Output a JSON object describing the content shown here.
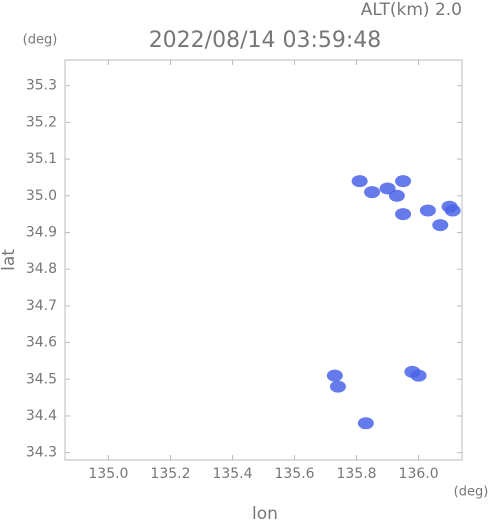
{
  "chart_data": {
    "type": "scatter",
    "title": "2022/08/14 03:59:48",
    "subtitle": "ALT(km) 2.0",
    "y_unit": "(deg)",
    "x_unit": "(deg)",
    "x_label": "lon",
    "y_label": "lat",
    "x": [
      135.81,
      135.85,
      135.9,
      135.95,
      135.93,
      135.95,
      136.03,
      136.07,
      136.1,
      136.11,
      135.73,
      135.74,
      135.98,
      136.0,
      135.83
    ],
    "y": [
      35.04,
      35.01,
      35.02,
      35.04,
      35.0,
      34.95,
      34.96,
      34.92,
      34.97,
      34.96,
      34.51,
      34.48,
      34.52,
      34.51,
      34.38
    ],
    "color": "#4a63e8",
    "xlim": [
      134.86,
      136.14
    ],
    "ylim": [
      34.28,
      35.37
    ],
    "xticks": [
      {
        "value": 135,
        "label": "135.0"
      },
      135.2,
      135.4,
      135.6,
      135.8,
      {
        "value": 136,
        "label": "136.0"
      }
    ],
    "yticks": [
      34.3,
      34.4,
      34.5,
      34.6,
      34.7,
      34.8,
      34.9,
      {
        "value": 35,
        "label": "35.0"
      },
      35.1,
      35.2,
      35.3
    ]
  }
}
